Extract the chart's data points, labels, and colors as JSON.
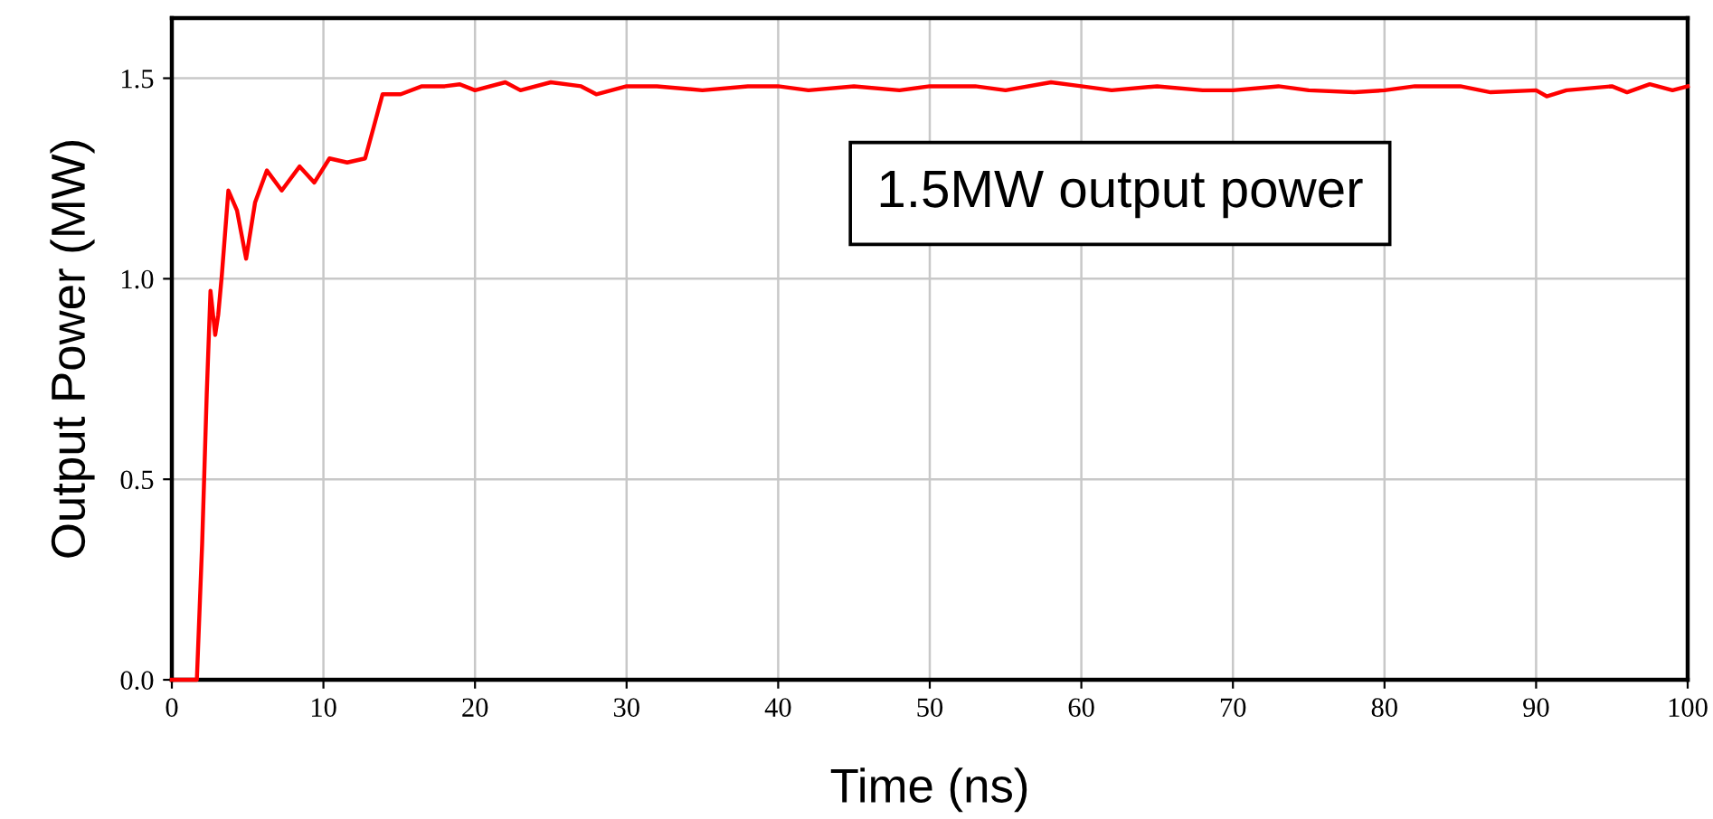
{
  "chart_data": {
    "type": "line",
    "xlabel": "Time (ns)",
    "ylabel": "Output Power (MW)",
    "annotations": [
      "1.5MW output power"
    ],
    "x": [
      0,
      1.65,
      2.0,
      2.3,
      2.55,
      2.86,
      3.06,
      3.3,
      3.73,
      4.3,
      4.9,
      5.49,
      6.27,
      7.25,
      8.43,
      9.4,
      10.4,
      11.57,
      12.75,
      13.33,
      13.9,
      15.1,
      16.5,
      18,
      19,
      20,
      22,
      23,
      25,
      27,
      28,
      30,
      32,
      35,
      38,
      40,
      42,
      45,
      48,
      50,
      53,
      55,
      58,
      60,
      62,
      65,
      68,
      70,
      73,
      75,
      78,
      80,
      82,
      85,
      87,
      90,
      90.7,
      92,
      95,
      96,
      97.5,
      99,
      100
    ],
    "series": [
      {
        "color": "#ff0000",
        "values": [
          0,
          0,
          0.34,
          0.71,
          0.97,
          0.86,
          0.91,
          1.01,
          1.22,
          1.17,
          1.05,
          1.19,
          1.27,
          1.22,
          1.28,
          1.24,
          1.3,
          1.29,
          1.3,
          1.38,
          1.46,
          1.46,
          1.48,
          1.48,
          1.485,
          1.47,
          1.49,
          1.47,
          1.49,
          1.48,
          1.46,
          1.48,
          1.48,
          1.47,
          1.48,
          1.48,
          1.47,
          1.48,
          1.47,
          1.48,
          1.48,
          1.47,
          1.49,
          1.48,
          1.47,
          1.48,
          1.47,
          1.47,
          1.48,
          1.47,
          1.465,
          1.47,
          1.48,
          1.48,
          1.465,
          1.47,
          1.455,
          1.47,
          1.48,
          1.465,
          1.485,
          1.47,
          1.48
        ]
      }
    ],
    "xlim": [
      0,
      100
    ],
    "xticks": [
      0,
      10,
      20,
      30,
      40,
      50,
      60,
      70,
      80,
      90,
      100
    ],
    "ylim": [
      0,
      1.65
    ],
    "yticks": [
      {
        "value": 0,
        "label": "0.0"
      },
      {
        "value": 0.5,
        "label": "0.5"
      },
      {
        "value": 1,
        "label": "1.0"
      },
      {
        "value": 1.5,
        "label": "1.5"
      }
    ],
    "grid": true,
    "legend": false,
    "marker": "none",
    "line_style": "solid"
  }
}
